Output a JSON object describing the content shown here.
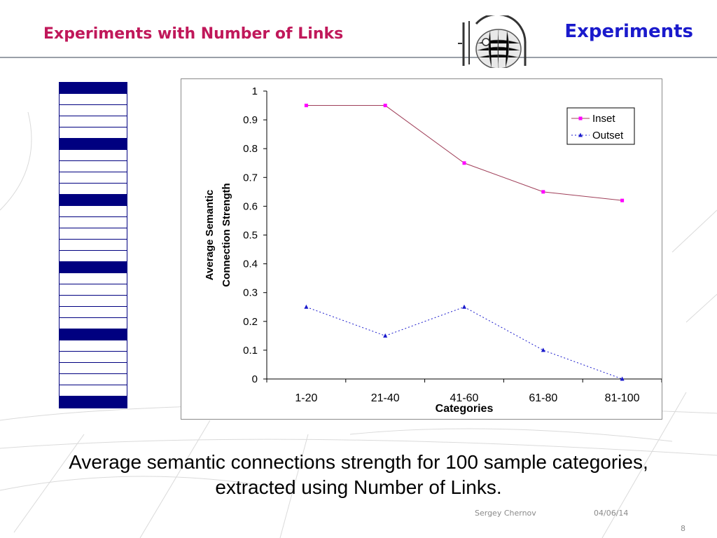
{
  "slide": {
    "title": "Experiments with Number of Links",
    "section": "Experiments",
    "caption": "Average semantic connections strength for 100 sample categories, extracted using Number of Links.",
    "author": "Sergey Chernov",
    "date": "04/06/14",
    "page_number": "8"
  },
  "colors": {
    "title": "#c0185a",
    "section": "#1a1acc",
    "stripe": "#000080",
    "inset": "#ff00ff",
    "inset_line": "#a0405a",
    "outset": "#1a1acc"
  },
  "stripe_pattern": [
    "dark",
    "light",
    "light",
    "light",
    "light",
    "dark",
    "light",
    "light",
    "light",
    "light",
    "dark",
    "light",
    "light",
    "light",
    "light",
    "light",
    "dark",
    "light",
    "light",
    "light",
    "light",
    "light",
    "dark",
    "light",
    "light",
    "light",
    "light",
    "light",
    "dark"
  ],
  "chart_data": {
    "type": "line",
    "categories": [
      "1-20",
      "21-40",
      "41-60",
      "61-80",
      "81-100"
    ],
    "series": [
      {
        "name": "Inset",
        "values": [
          0.95,
          0.95,
          0.75,
          0.65,
          0.62
        ],
        "marker": "square",
        "line": "solid"
      },
      {
        "name": "Outset",
        "values": [
          0.25,
          0.15,
          0.25,
          0.1,
          0.0
        ],
        "marker": "triangle",
        "line": "dotted"
      }
    ],
    "xlabel": "Categories",
    "ylabel_lines": [
      "Average Semantic",
      "Connection Strength"
    ],
    "ylim": [
      0,
      1
    ],
    "yticks": [
      "0",
      "0.1",
      "0.2",
      "0.3",
      "0.4",
      "0.5",
      "0.6",
      "0.7",
      "0.8",
      "0.9",
      "1"
    ],
    "grid": false,
    "legend_position": "top-right"
  }
}
